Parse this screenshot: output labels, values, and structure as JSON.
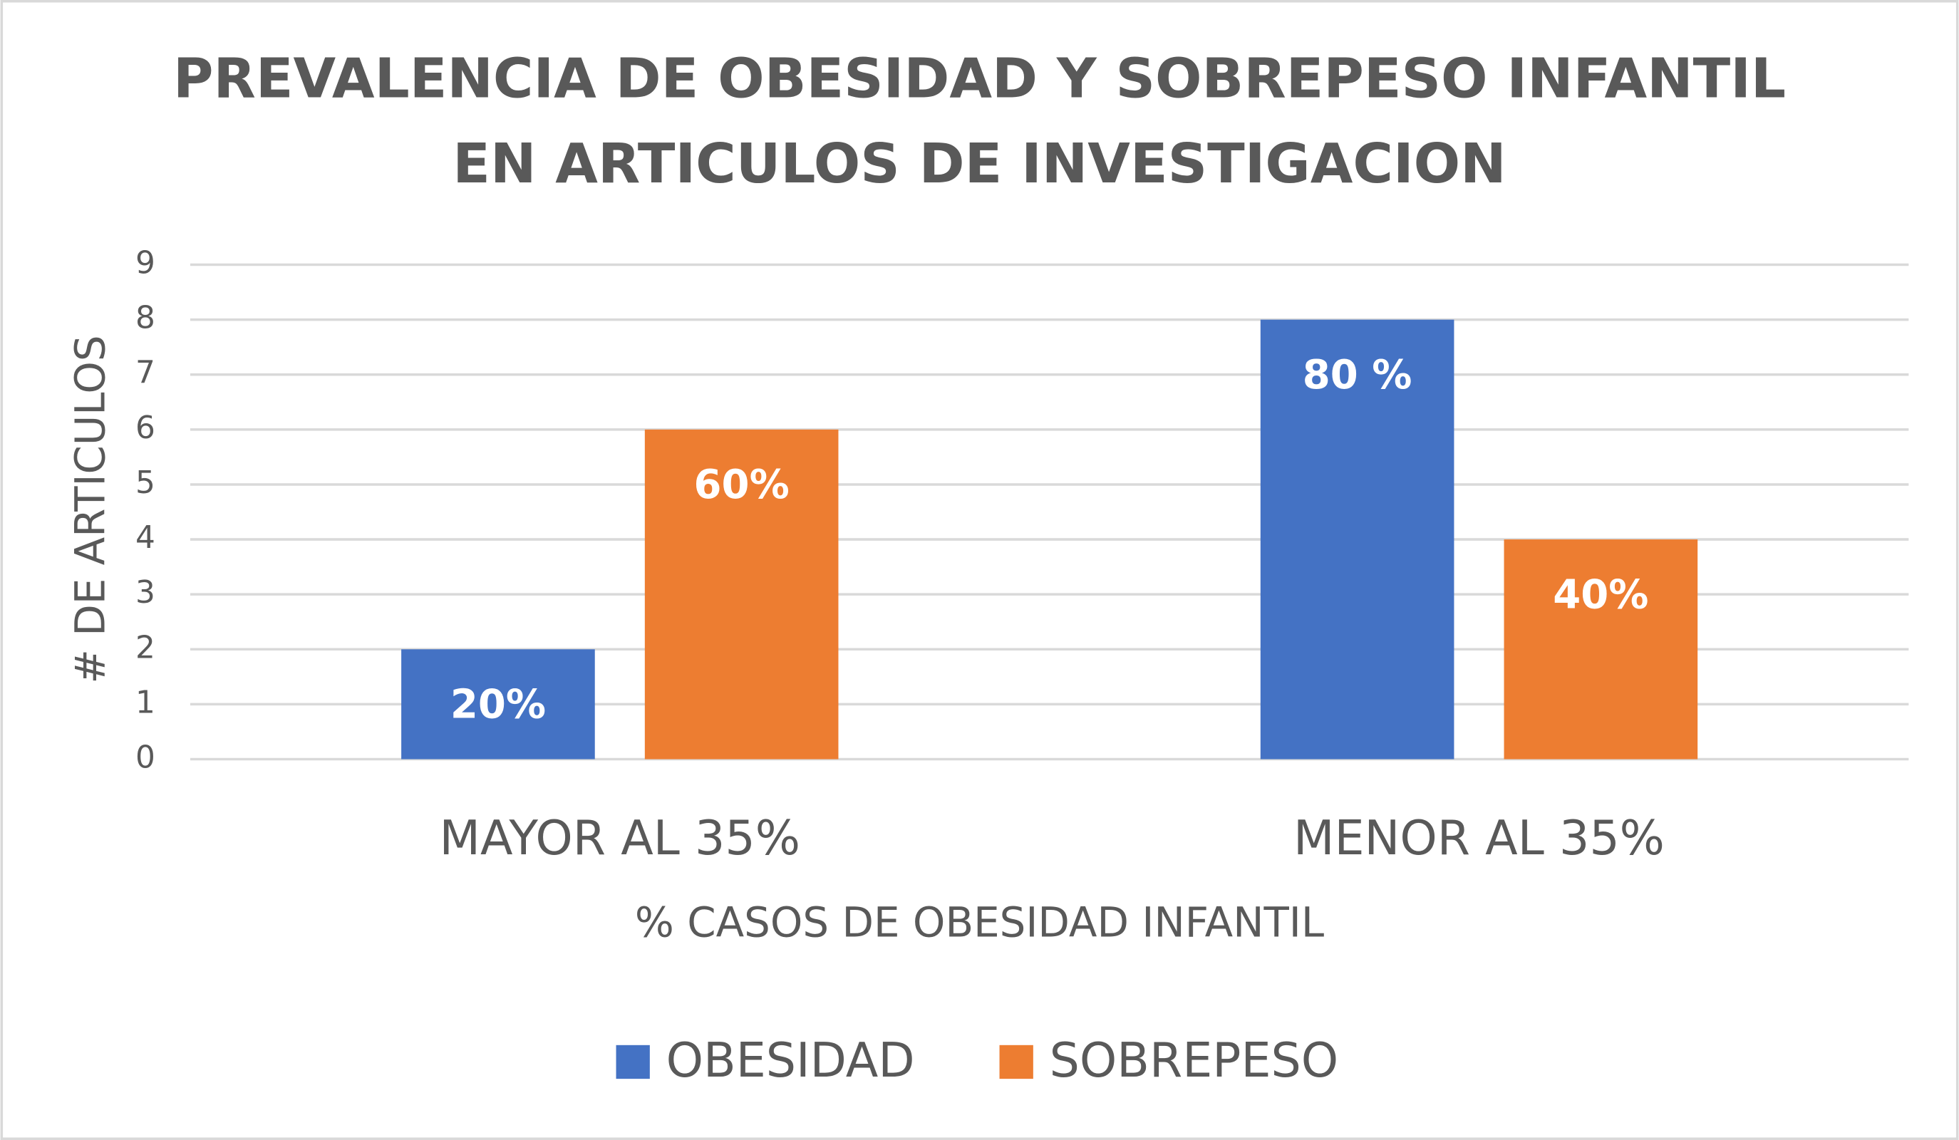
{
  "chart_data": {
    "type": "bar",
    "title": [
      "PREVALENCIA DE OBESIDAD Y SOBREPESO INFANTIL",
      "EN ARTICULOS DE INVESTIGACION"
    ],
    "xlabel": "% CASOS DE OBESIDAD INFANTIL",
    "ylabel": "# DE ARTICULOS",
    "categories": [
      "MAYOR AL 35%",
      "MENOR AL 35%"
    ],
    "series": [
      {
        "name": "OBESIDAD",
        "color": "#4472c4",
        "values": [
          2,
          8
        ],
        "value_labels": [
          "20%",
          "80 %"
        ]
      },
      {
        "name": "SOBREPESO",
        "color": "#ed7d31",
        "values": [
          6,
          4
        ],
        "value_labels": [
          "60%",
          "40%"
        ]
      }
    ],
    "ylim": [
      0,
      9
    ],
    "yticks": [
      0,
      1,
      2,
      3,
      4,
      5,
      6,
      7,
      8,
      9
    ],
    "grid": true,
    "legend": "bottom"
  }
}
